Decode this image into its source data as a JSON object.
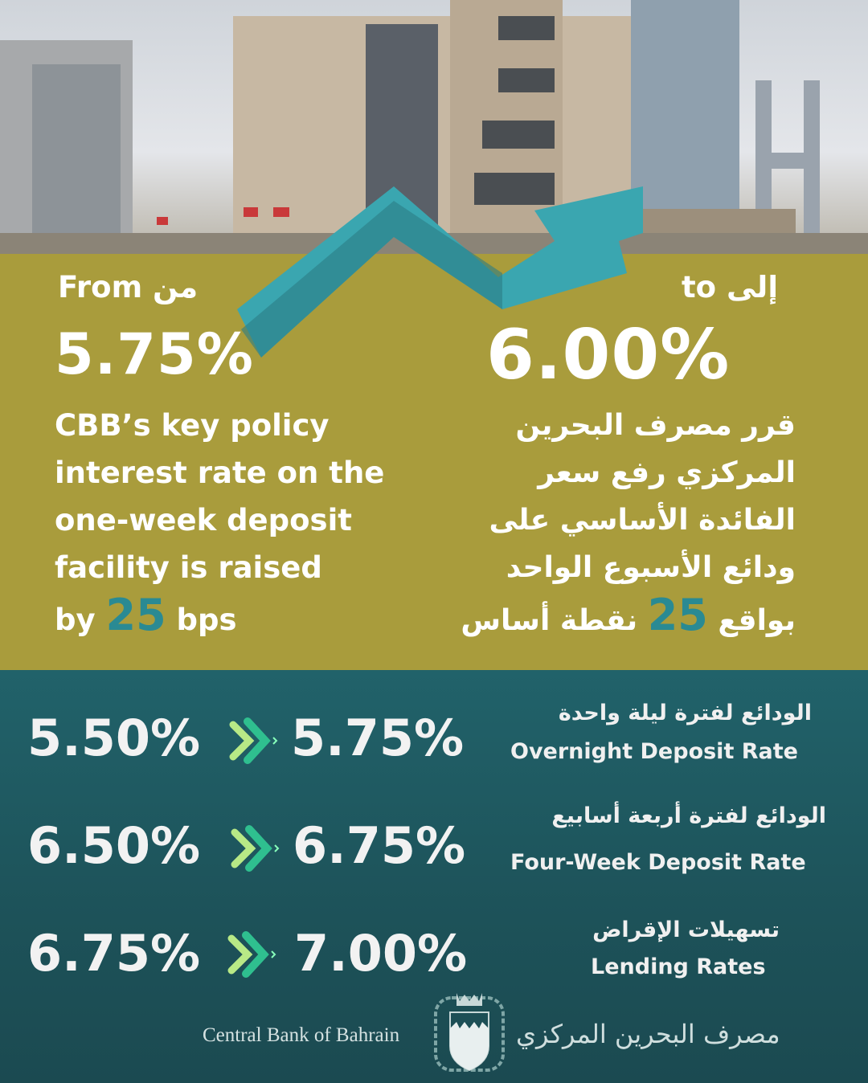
{
  "header": {
    "from_label": "From من",
    "from_value": "5.75%",
    "to_label": "to إلى",
    "to_value": "6.00%"
  },
  "english_text": {
    "lines": [
      "CBB’s key policy",
      "interest rate on the",
      "one-week deposit",
      "facility is raised"
    ],
    "by": "by",
    "bps_value": "25",
    "bps": "bps"
  },
  "arabic_text": {
    "lines": [
      "قرر مصرف البحرين",
      "المركزي رفع سعر",
      "الفائدة الأساسي على",
      "ودائع الأسبوع الواحد"
    ],
    "last_prefix": "بواقع",
    "bps_value": "25",
    "last_suffix": "نقطة أساس"
  },
  "rates": [
    {
      "from": "5.50%",
      "to": "5.75%",
      "label_ar": "الودائع لفترة ليلة واحدة",
      "label_en": "Overnight Deposit Rate"
    },
    {
      "from": "6.50%",
      "to": "6.75%",
      "label_ar": "الودائع لفترة أربعة أسابيع",
      "label_en": "Four-Week Deposit Rate"
    },
    {
      "from": "6.75%",
      "to": "7.00%",
      "label_ar": "تسهيلات الإقراض",
      "label_en": "Lending Rates"
    }
  ],
  "footer": {
    "name_en": "Central Bank of Bahrain",
    "name_ar": "مصرف البحرين المركزي"
  },
  "colors": {
    "gold": "#a99c3c",
    "teal": "#1e5359",
    "accent": "#2a8a93",
    "chevron_light": "#b8e986",
    "chevron_dark": "#2fbf8f"
  }
}
